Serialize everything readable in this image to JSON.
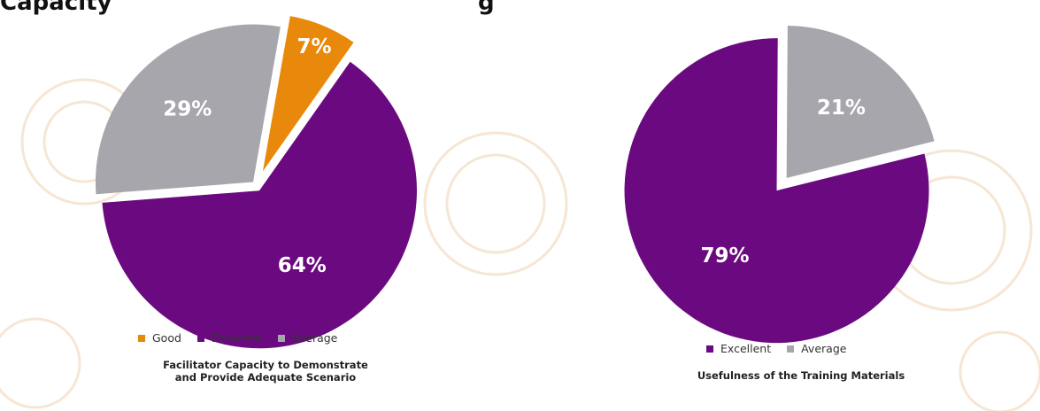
{
  "header_partial": {
    "left": "Capacity",
    "right": "g"
  },
  "chart_data": [
    {
      "type": "pie",
      "title": "Facilitator Capacity to Demonstrate\nand Provide Adequate Scenario",
      "categories": [
        "Good",
        "Excellent",
        "Average"
      ],
      "values": [
        7,
        64,
        29
      ],
      "labels": [
        "7%",
        "64%",
        "29%"
      ],
      "colors": [
        "#E8890C",
        "#6B0A80",
        "#A8A6AD"
      ],
      "exploded": true,
      "legend_position": "bottom"
    },
    {
      "type": "pie",
      "title": "Usefulness of the Training Materials",
      "categories": [
        "Excellent",
        "Average"
      ],
      "values": [
        79,
        21
      ],
      "labels": [
        "79%",
        "21%"
      ],
      "colors": [
        "#6B0A80",
        "#A8A6AD"
      ],
      "exploded": true,
      "legend_position": "bottom"
    }
  ]
}
